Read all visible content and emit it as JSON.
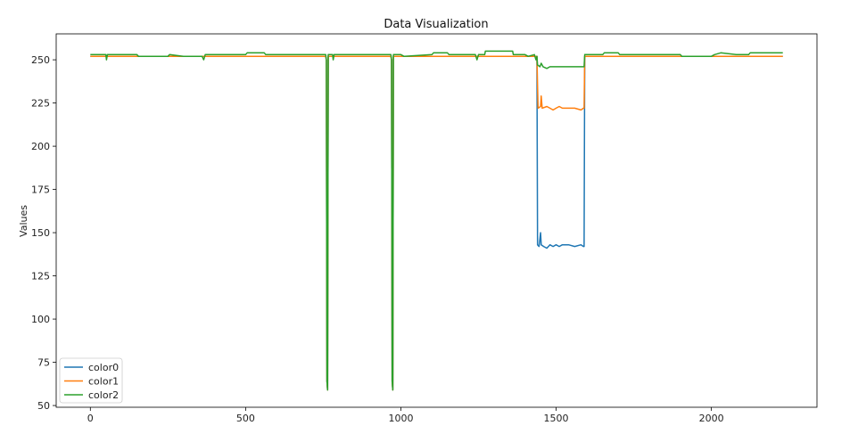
{
  "chart_data": {
    "type": "line",
    "title": "Data Visualization",
    "xlabel": "",
    "ylabel": "Values",
    "xlim": [
      -110,
      2340
    ],
    "ylim": [
      49,
      265
    ],
    "x_ticks": [
      0,
      500,
      1000,
      1500,
      2000
    ],
    "y_ticks": [
      50,
      75,
      100,
      125,
      150,
      175,
      200,
      225,
      250
    ],
    "grid": false,
    "legend_position": "lower-left",
    "series": [
      {
        "name": "color0",
        "color": "#1f77b4",
        "points": [
          [
            0,
            252
          ],
          [
            758,
            252
          ],
          [
            760,
            250
          ],
          [
            762,
            64
          ],
          [
            764,
            59
          ],
          [
            766,
            252
          ],
          [
            968,
            252
          ],
          [
            970,
            250
          ],
          [
            972,
            64
          ],
          [
            974,
            59
          ],
          [
            976,
            252
          ],
          [
            1438,
            252
          ],
          [
            1440,
            143
          ],
          [
            1445,
            142
          ],
          [
            1450,
            150
          ],
          [
            1452,
            143
          ],
          [
            1460,
            142
          ],
          [
            1470,
            141
          ],
          [
            1480,
            143
          ],
          [
            1490,
            142
          ],
          [
            1500,
            143
          ],
          [
            1510,
            142
          ],
          [
            1520,
            143
          ],
          [
            1540,
            143
          ],
          [
            1560,
            142
          ],
          [
            1580,
            143
          ],
          [
            1588,
            142
          ],
          [
            1590,
            142
          ],
          [
            1592,
            252
          ],
          [
            2230,
            252
          ]
        ]
      },
      {
        "name": "color1",
        "color": "#ff7f0e",
        "points": [
          [
            0,
            252
          ],
          [
            758,
            252
          ],
          [
            760,
            250
          ],
          [
            762,
            64
          ],
          [
            764,
            59
          ],
          [
            766,
            252
          ],
          [
            968,
            252
          ],
          [
            970,
            250
          ],
          [
            972,
            64
          ],
          [
            974,
            59
          ],
          [
            976,
            252
          ],
          [
            1438,
            252
          ],
          [
            1440,
            235
          ],
          [
            1442,
            222
          ],
          [
            1450,
            223
          ],
          [
            1452,
            229
          ],
          [
            1455,
            222
          ],
          [
            1470,
            223
          ],
          [
            1480,
            222
          ],
          [
            1490,
            221
          ],
          [
            1500,
            222
          ],
          [
            1510,
            223
          ],
          [
            1520,
            222
          ],
          [
            1540,
            222
          ],
          [
            1560,
            222
          ],
          [
            1580,
            221
          ],
          [
            1588,
            222
          ],
          [
            1590,
            222
          ],
          [
            1592,
            252
          ],
          [
            2230,
            252
          ]
        ]
      },
      {
        "name": "color2",
        "color": "#2ca02c",
        "points": [
          [
            0,
            253
          ],
          [
            50,
            253
          ],
          [
            52,
            250
          ],
          [
            55,
            253
          ],
          [
            150,
            253
          ],
          [
            155,
            252
          ],
          [
            250,
            252
          ],
          [
            255,
            253
          ],
          [
            300,
            252
          ],
          [
            360,
            252
          ],
          [
            365,
            250
          ],
          [
            370,
            253
          ],
          [
            500,
            253
          ],
          [
            505,
            254
          ],
          [
            560,
            254
          ],
          [
            565,
            253
          ],
          [
            758,
            253
          ],
          [
            760,
            250
          ],
          [
            762,
            64
          ],
          [
            764,
            59
          ],
          [
            766,
            253
          ],
          [
            780,
            253
          ],
          [
            782,
            250
          ],
          [
            785,
            253
          ],
          [
            968,
            253
          ],
          [
            970,
            250
          ],
          [
            972,
            64
          ],
          [
            974,
            59
          ],
          [
            976,
            253
          ],
          [
            1000,
            253
          ],
          [
            1010,
            252
          ],
          [
            1100,
            253
          ],
          [
            1105,
            254
          ],
          [
            1150,
            254
          ],
          [
            1155,
            253
          ],
          [
            1240,
            253
          ],
          [
            1245,
            250
          ],
          [
            1250,
            253
          ],
          [
            1270,
            253
          ],
          [
            1272,
            255
          ],
          [
            1360,
            255
          ],
          [
            1362,
            253
          ],
          [
            1400,
            253
          ],
          [
            1410,
            252
          ],
          [
            1430,
            253
          ],
          [
            1435,
            250
          ],
          [
            1438,
            252
          ],
          [
            1440,
            247
          ],
          [
            1448,
            246
          ],
          [
            1452,
            248
          ],
          [
            1458,
            246
          ],
          [
            1470,
            245
          ],
          [
            1480,
            246
          ],
          [
            1500,
            246
          ],
          [
            1510,
            246
          ],
          [
            1520,
            246
          ],
          [
            1540,
            246
          ],
          [
            1560,
            246
          ],
          [
            1580,
            246
          ],
          [
            1590,
            246
          ],
          [
            1592,
            253
          ],
          [
            1650,
            253
          ],
          [
            1655,
            254
          ],
          [
            1700,
            254
          ],
          [
            1705,
            253
          ],
          [
            1900,
            253
          ],
          [
            1905,
            252
          ],
          [
            2000,
            252
          ],
          [
            2010,
            253
          ],
          [
            2030,
            254
          ],
          [
            2080,
            253
          ],
          [
            2120,
            253
          ],
          [
            2125,
            254
          ],
          [
            2230,
            254
          ]
        ]
      }
    ]
  }
}
